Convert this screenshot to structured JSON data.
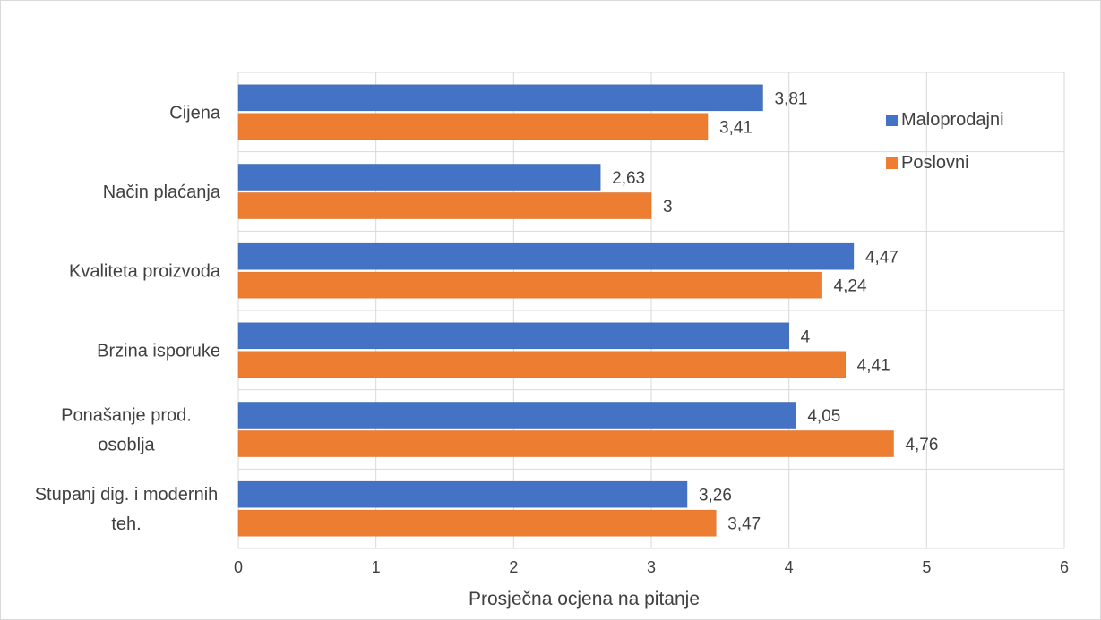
{
  "chart_data": {
    "type": "bar",
    "orientation": "horizontal",
    "categories": [
      [
        "Cijena"
      ],
      [
        "Način plaćanja"
      ],
      [
        "Kvaliteta proizvoda"
      ],
      [
        "Brzina isporuke"
      ],
      [
        "Ponašanje prod.",
        "osoblja"
      ],
      [
        "Stupanj dig. i modernih",
        "teh."
      ]
    ],
    "series": [
      {
        "name": "Maloprodajni",
        "color": "#4472C4",
        "values": [
          3.81,
          2.63,
          4.47,
          4,
          4.05,
          3.26
        ],
        "labels": [
          "3,81",
          "2,63",
          "4,47",
          "4",
          "4,05",
          "3,26"
        ]
      },
      {
        "name": "Poslovni",
        "color": "#ED7D31",
        "values": [
          3.41,
          3,
          4.24,
          4.41,
          4.76,
          3.47
        ],
        "labels": [
          "3,41",
          "3",
          "4,24",
          "4,41",
          "4,76",
          "3,47"
        ]
      }
    ],
    "xlabel": "Prosječna ocjena na pitanje",
    "ylabel": "",
    "xlim": [
      0,
      6
    ],
    "xticks": [
      "0",
      "1",
      "2",
      "3",
      "4",
      "5",
      "6"
    ],
    "grid": true,
    "legend_position": "top-right"
  }
}
